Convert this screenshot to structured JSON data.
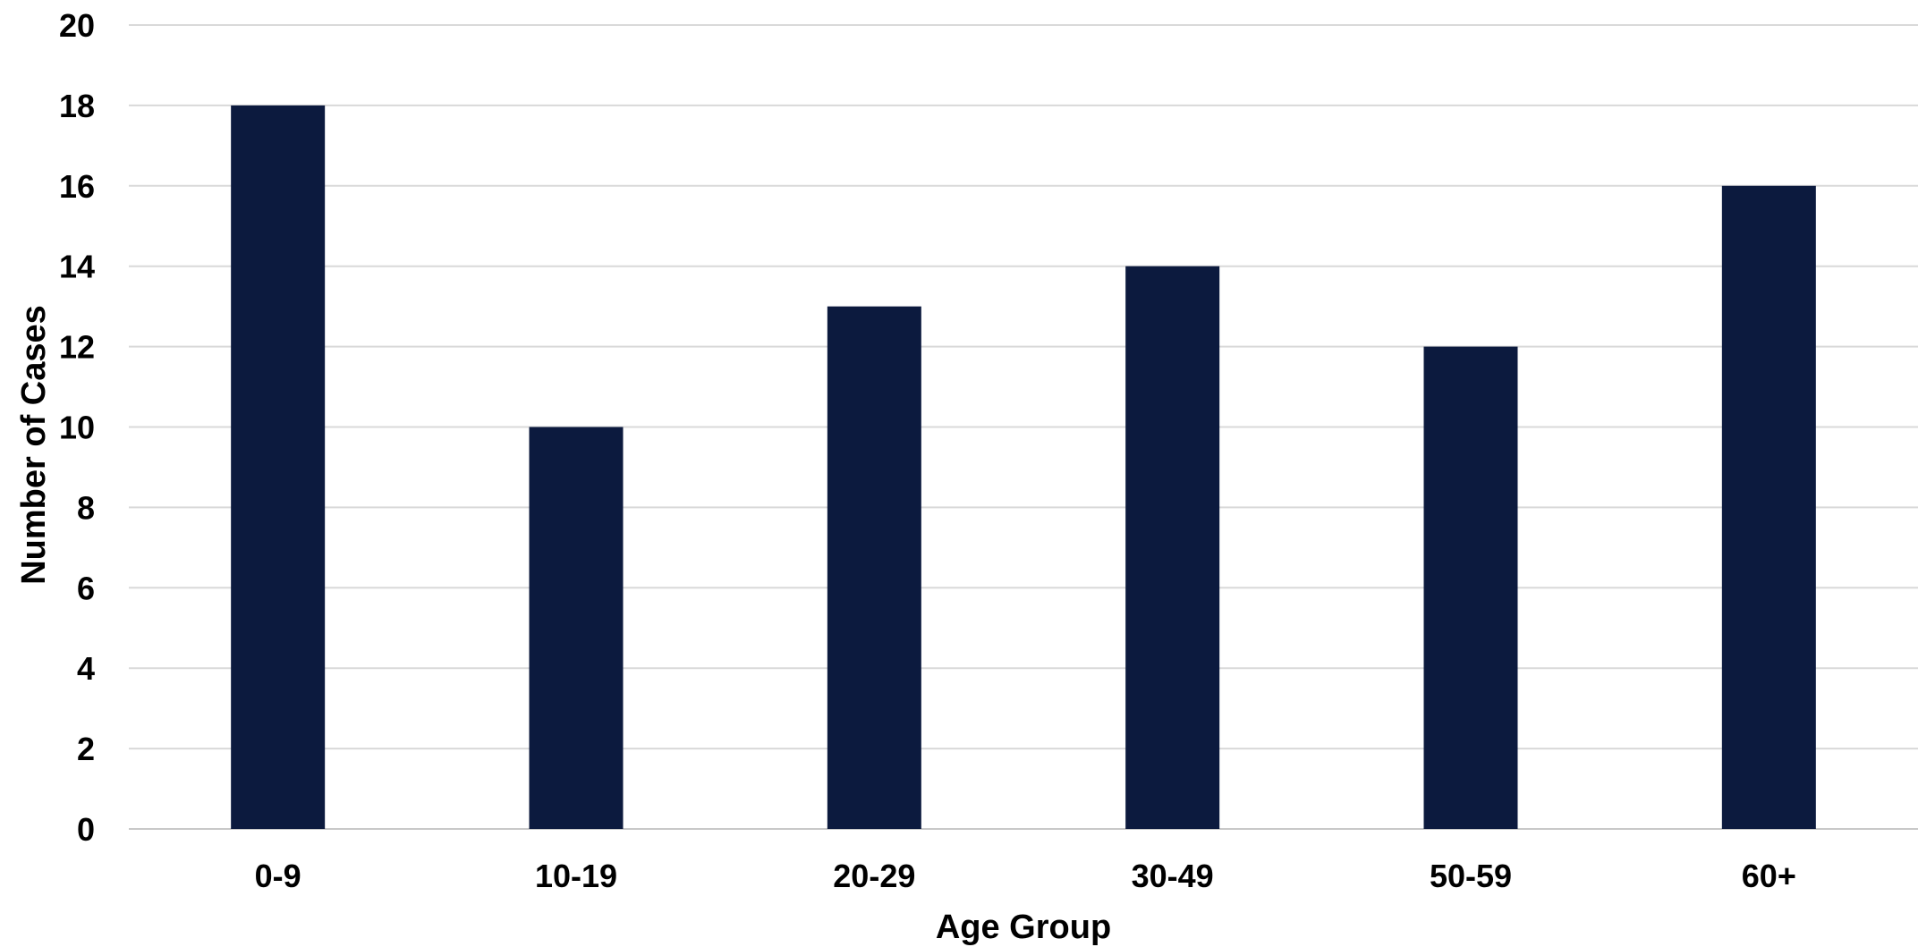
{
  "chart_data": {
    "type": "bar",
    "title": "",
    "xlabel": "Age Group",
    "ylabel": "Number of Cases",
    "categories": [
      "0-9",
      "10-19",
      "20-29",
      "30-49",
      "50-59",
      "60+"
    ],
    "values": [
      18,
      10,
      13,
      14,
      12,
      16
    ],
    "ylim": [
      0,
      20
    ],
    "yticks": [
      0,
      2,
      4,
      6,
      8,
      10,
      12,
      14,
      16,
      18,
      20
    ],
    "grid": true,
    "legend": "none",
    "colors": {
      "bar": "#0c1a3e",
      "grid": "#d9d9d9",
      "axis": "#c8c8c8",
      "text": "#000000"
    }
  }
}
